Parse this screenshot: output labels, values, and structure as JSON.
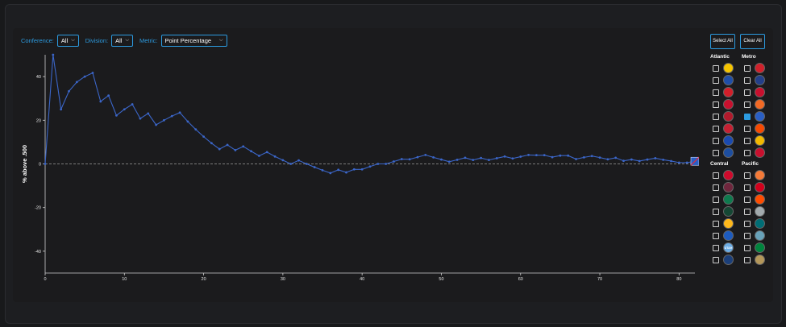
{
  "controls": {
    "conference_label": "Conference:",
    "conference_value": "All",
    "division_label": "Division:",
    "division_value": "All",
    "metric_label": "Metric:",
    "metric_value": "Point Percentage"
  },
  "buttons": {
    "select_all": "Select All",
    "clear_all": "Clear All"
  },
  "colors": {
    "accent": "#2c9be0",
    "line": "#3b66c9"
  },
  "divisions": [
    {
      "name": "Atlantic",
      "teams": [
        {
          "team": "bruins-logo",
          "checked": false,
          "color": "#f5c400"
        },
        {
          "team": "sabres-logo",
          "checked": false,
          "color": "#1f4ea8"
        },
        {
          "team": "red-wings-logo",
          "checked": false,
          "color": "#d31f2a"
        },
        {
          "team": "panthers-logo",
          "checked": false,
          "color": "#c8102e"
        },
        {
          "team": "canadiens-logo",
          "checked": false,
          "color": "#b21a2c"
        },
        {
          "team": "senators-logo",
          "checked": false,
          "color": "#c52032"
        },
        {
          "team": "lightning-logo",
          "checked": false,
          "color": "#1a4ab0"
        },
        {
          "team": "maple-leafs-logo",
          "checked": false,
          "color": "#1d4ea0"
        }
      ]
    },
    {
      "name": "Metro",
      "teams": [
        {
          "team": "hurricanes-logo",
          "checked": false,
          "color": "#d0212b"
        },
        {
          "team": "blue-jackets-logo",
          "checked": false,
          "color": "#233f8a"
        },
        {
          "team": "devils-logo",
          "checked": false,
          "color": "#c8102e"
        },
        {
          "team": "islanders-logo",
          "checked": false,
          "color": "#f26924"
        },
        {
          "team": "rangers-logo",
          "checked": true,
          "color": "#2a5fc4"
        },
        {
          "team": "flyers-logo",
          "checked": false,
          "color": "#f74902"
        },
        {
          "team": "penguins-logo",
          "checked": false,
          "color": "#f2b800"
        },
        {
          "team": "capitals-logo",
          "checked": false,
          "color": "#c8102e"
        }
      ]
    },
    {
      "name": "Central",
      "teams": [
        {
          "team": "blackhawks-logo",
          "checked": false,
          "color": "#cf0a2c"
        },
        {
          "team": "avalanche-logo",
          "checked": false,
          "color": "#6f263d"
        },
        {
          "team": "stars-logo",
          "checked": false,
          "color": "#0e7a4e"
        },
        {
          "team": "wild-logo",
          "checked": false,
          "color": "#154734"
        },
        {
          "team": "predators-logo",
          "checked": false,
          "color": "#ffb81c"
        },
        {
          "team": "blues-logo",
          "checked": false,
          "color": "#1d5bbf"
        },
        {
          "team": "utah-logo",
          "checked": false,
          "color": "#6cace4",
          "label": "UTAH"
        },
        {
          "team": "jets-logo",
          "checked": false,
          "color": "#1b3f7a"
        }
      ]
    },
    {
      "name": "Pacific",
      "teams": [
        {
          "team": "ducks-logo",
          "checked": false,
          "color": "#f47a38"
        },
        {
          "team": "flames-logo",
          "checked": false,
          "color": "#d2001c"
        },
        {
          "team": "oilers-logo",
          "checked": false,
          "color": "#ff4c00"
        },
        {
          "team": "kings-logo",
          "checked": false,
          "color": "#a2aaad"
        },
        {
          "team": "sharks-logo",
          "checked": false,
          "color": "#006d75"
        },
        {
          "team": "kraken-logo",
          "checked": false,
          "color": "#68a2b9"
        },
        {
          "team": "canucks-logo",
          "checked": false,
          "color": "#00843d"
        },
        {
          "team": "golden-knights-logo",
          "checked": false,
          "color": "#b4975a"
        }
      ]
    }
  ],
  "chart_data": {
    "type": "line",
    "ylabel": "% above .500",
    "xlabel": "",
    "xlim": [
      0,
      82
    ],
    "ylim": [
      -50,
      50
    ],
    "xticks": [
      0,
      10,
      20,
      30,
      40,
      50,
      60,
      70,
      80
    ],
    "yticks": [
      -40,
      -20,
      0,
      20,
      40
    ],
    "reference_line": 0,
    "series": [
      {
        "end_marker": "rangers-logo",
        "x": [
          0,
          1,
          2,
          3,
          4,
          5,
          6,
          7,
          8,
          9,
          10,
          11,
          12,
          13,
          14,
          15,
          16,
          17,
          18,
          19,
          20,
          21,
          22,
          23,
          24,
          25,
          26,
          27,
          28,
          29,
          30,
          31,
          32,
          33,
          34,
          35,
          36,
          37,
          38,
          39,
          40,
          41,
          42,
          43,
          44,
          45,
          46,
          47,
          48,
          49,
          50,
          51,
          52,
          53,
          54,
          55,
          56,
          57,
          58,
          59,
          60,
          61,
          62,
          63,
          64,
          65,
          66,
          67,
          68,
          69,
          70,
          71,
          72,
          73,
          74,
          75,
          76,
          77,
          78,
          79,
          80,
          81,
          82
        ],
        "y": [
          0,
          50,
          25,
          33.3,
          37.5,
          40,
          41.7,
          28.6,
          31.3,
          22.2,
          25,
          27.3,
          20.8,
          23.1,
          17.9,
          20,
          21.9,
          23.5,
          19.4,
          15.8,
          12.5,
          9.5,
          6.8,
          8.7,
          6.3,
          8,
          5.8,
          3.7,
          5.4,
          3.4,
          1.7,
          0,
          1.6,
          0,
          -1.5,
          -2.9,
          -4.2,
          -2.7,
          -3.9,
          -2.5,
          -2.5,
          -1.2,
          0,
          0,
          1.1,
          2.2,
          2.1,
          3.1,
          4.1,
          3,
          2,
          1,
          1.9,
          2.8,
          1.8,
          2.7,
          1.8,
          2.6,
          3.4,
          2.5,
          3.3,
          4.1,
          4,
          4,
          3.1,
          3.8,
          3.8,
          2.2,
          3,
          3.6,
          2.9,
          2.1,
          2.8,
          1.4,
          2,
          1.3,
          2,
          2.6,
          1.9,
          1.3,
          0.6,
          0.6,
          1.2
        ]
      }
    ]
  }
}
